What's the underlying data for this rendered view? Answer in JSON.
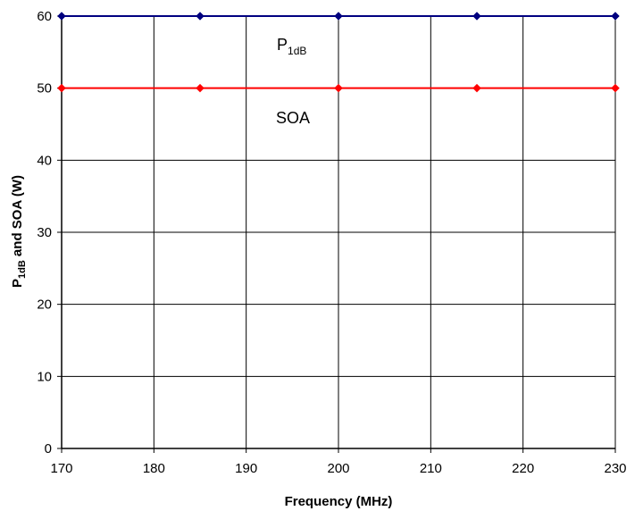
{
  "chart_data": {
    "type": "line",
    "title": "",
    "xlabel": "Frequency (MHz)",
    "ylabel": {
      "prefix": "P",
      "subscript": "1dB",
      "suffix": " and SOA (W)"
    },
    "xlim": [
      170,
      230
    ],
    "ylim": [
      0,
      60
    ],
    "xticks": [
      170,
      180,
      190,
      200,
      210,
      220,
      230
    ],
    "yticks": [
      0,
      10,
      20,
      30,
      40,
      50,
      60
    ],
    "grid": true,
    "series": [
      {
        "label": {
          "prefix": "P",
          "subscript": "1dB",
          "suffix": ""
        },
        "color": "#000080",
        "marker": "diamond",
        "x": [
          170,
          185,
          200,
          215,
          230
        ],
        "y": [
          60,
          60,
          60,
          60,
          60
        ]
      },
      {
        "label": {
          "prefix": "SOA",
          "subscript": "",
          "suffix": ""
        },
        "color": "#ff0000",
        "marker": "diamond",
        "x": [
          170,
          185,
          200,
          215,
          230
        ],
        "y": [
          50,
          50,
          50,
          50,
          50
        ]
      }
    ]
  }
}
